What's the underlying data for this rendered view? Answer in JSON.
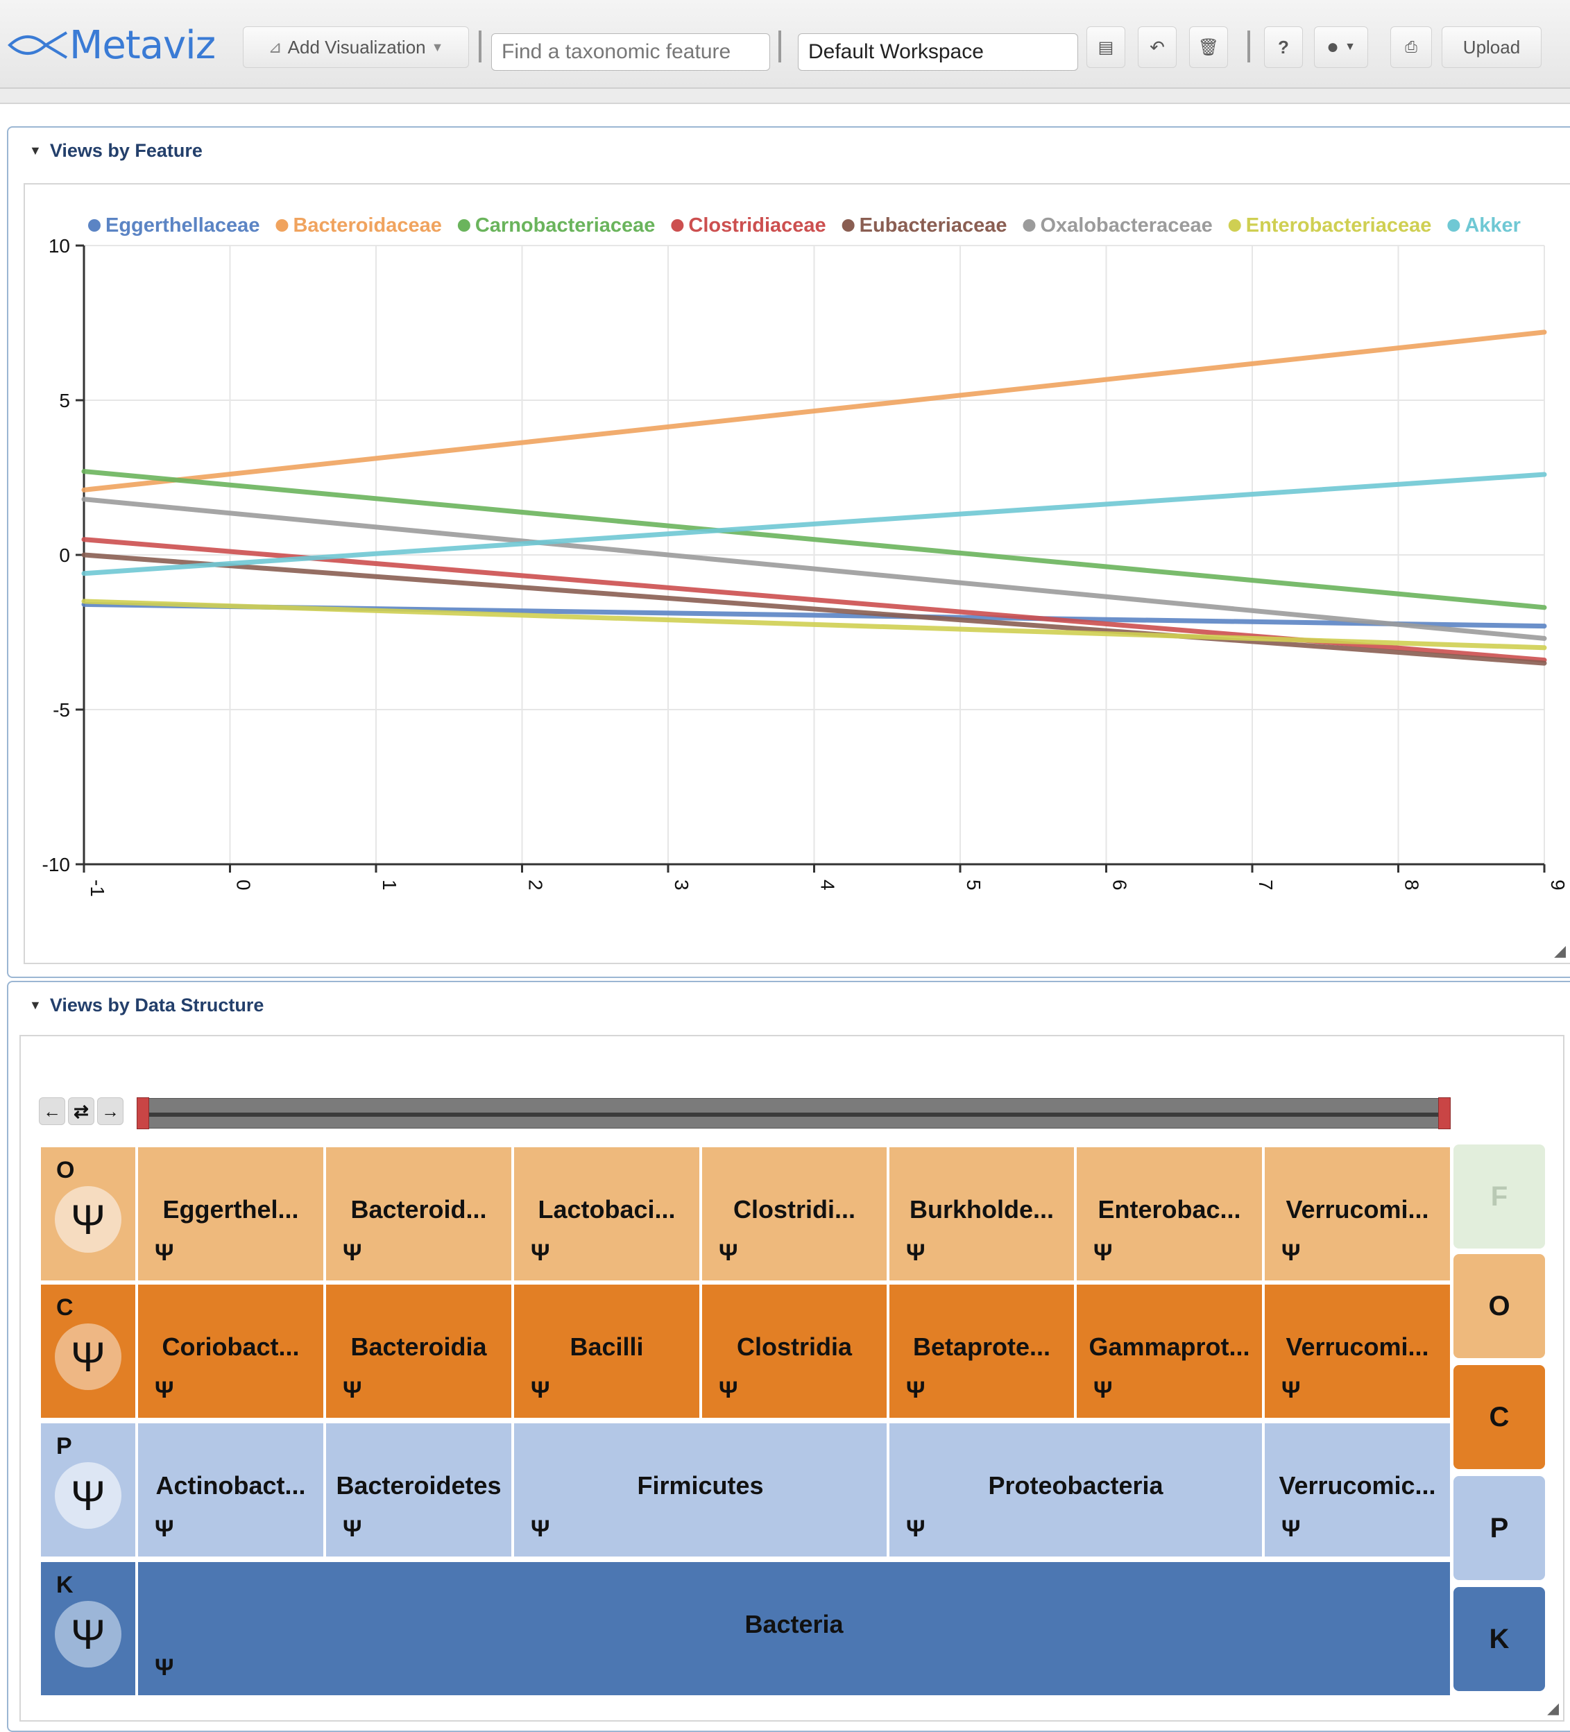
{
  "app": {
    "logo_text": "Metaviz",
    "add_visualization_label": "Add Visualization",
    "search_placeholder": "Find a taxonomic feature",
    "workspace_name": "Default Workspace",
    "help_label": "?",
    "upload_label": "Upload"
  },
  "feature_panel": {
    "title": "Views by Feature"
  },
  "structure_panel": {
    "title": "Views by Data Structure"
  },
  "colors": {
    "Eggerthellaceae": "#5b84c4",
    "Bacteroidaceae": "#f0a35e",
    "Carnobacteriaceae": "#6ab45c",
    "Clostridiaceae": "#cc4f4f",
    "Eubacteriaceae": "#8a5e52",
    "Oxalobacteraceae": "#9b9b9b",
    "Enterobacteriaceae": "#cfcf52",
    "Akkermansiaceae": "#6fc8d4",
    "order_row": "#eeb97c",
    "class_row": "#e27f25",
    "phylum_row": "#b3c7e6",
    "kingdom_row": "#4c77b2"
  },
  "chart_data": {
    "type": "line",
    "title": "",
    "xlabel": "",
    "ylabel": "",
    "xlim": [
      -1,
      9
    ],
    "ylim": [
      -10,
      10
    ],
    "xticks": [
      "-1",
      "0",
      "1",
      "2",
      "3",
      "4",
      "5",
      "6",
      "7",
      "8",
      "9"
    ],
    "yticks": [
      "10",
      "5",
      "0",
      "-5",
      "-10"
    ],
    "grid": true,
    "legend_position": "top",
    "legend": [
      "Eggerthellaceae",
      "Bacteroidaceae",
      "Carnobacteriaceae",
      "Clostridiaceae",
      "Eubacteriaceae",
      "Oxalobacteraceae",
      "Enterobacteriaceae",
      "Akker"
    ],
    "series": [
      {
        "name": "Eggerthellaceae",
        "color": "#5b84c4",
        "x": [
          -1,
          9
        ],
        "y": [
          -1.6,
          -2.3
        ]
      },
      {
        "name": "Bacteroidaceae",
        "color": "#f0a35e",
        "x": [
          -1,
          9
        ],
        "y": [
          2.1,
          7.2
        ]
      },
      {
        "name": "Carnobacteriaceae",
        "color": "#6ab45c",
        "x": [
          -1,
          9
        ],
        "y": [
          2.7,
          -1.7
        ]
      },
      {
        "name": "Clostridiaceae",
        "color": "#cc4f4f",
        "x": [
          -1,
          9
        ],
        "y": [
          0.5,
          -3.4
        ]
      },
      {
        "name": "Eubacteriaceae",
        "color": "#8a5e52",
        "x": [
          -1,
          9
        ],
        "y": [
          0.0,
          -3.5
        ]
      },
      {
        "name": "Oxalobacteraceae",
        "color": "#9b9b9b",
        "x": [
          -1,
          9
        ],
        "y": [
          1.8,
          -2.7
        ]
      },
      {
        "name": "Enterobacteriaceae",
        "color": "#cfcf52",
        "x": [
          -1,
          9
        ],
        "y": [
          -1.5,
          -3.0
        ]
      },
      {
        "name": "Akkermansiaceae",
        "color": "#6fc8d4",
        "x": [
          -1,
          9
        ],
        "y": [
          -0.6,
          2.6
        ]
      }
    ]
  },
  "icicle": {
    "levels": [
      {
        "letter": "O",
        "cells": [
          "Eggerthel...",
          "Bacteroid...",
          "Lactobaci...",
          "Clostridi...",
          "Burkholde...",
          "Enterobac...",
          "Verrucomi..."
        ]
      },
      {
        "letter": "C",
        "cells": [
          "Coriobact...",
          "Bacteroidia",
          "Bacilli",
          "Clostridia",
          "Betaprote...",
          "Gammaprot...",
          "Verrucomi..."
        ]
      },
      {
        "letter": "P",
        "cells": [
          "Actinobact...",
          "Bacteroidetes",
          "Firmicutes",
          "Proteobacteria",
          "Verrucomic..."
        ]
      },
      {
        "letter": "K",
        "cells": [
          "Bacteria"
        ]
      }
    ],
    "side_buttons": [
      "F",
      "O",
      "C",
      "P",
      "K"
    ]
  }
}
